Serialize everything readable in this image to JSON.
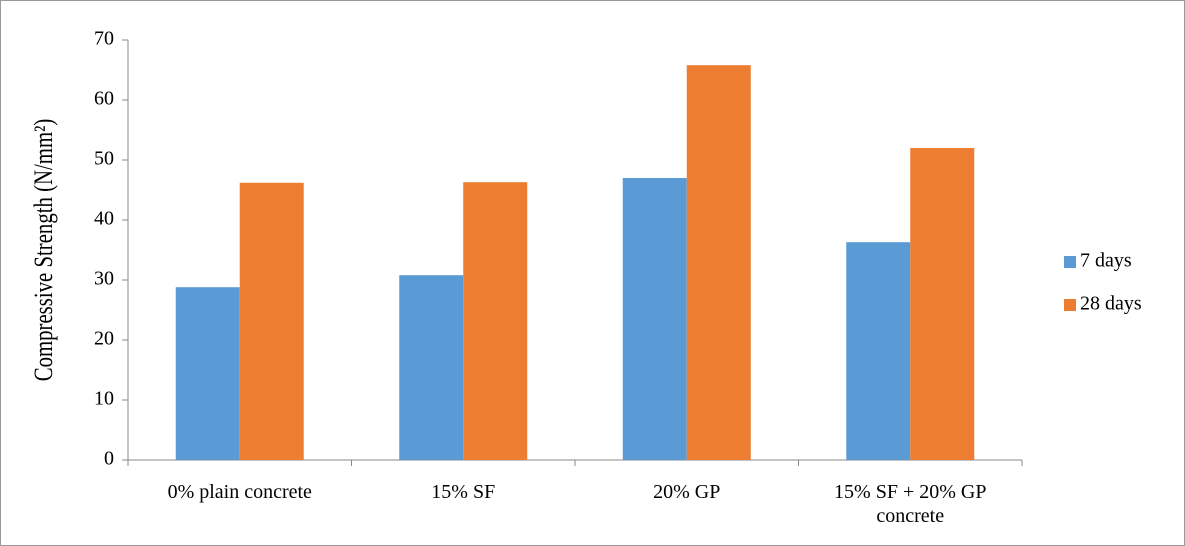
{
  "chart_data": {
    "type": "bar",
    "y_axis_label": "Compressive Strength (N/mm²)",
    "categories": [
      "0% plain concrete",
      "15% SF",
      "20% GP",
      "15% SF + 20% GP concrete"
    ],
    "series": [
      {
        "name": "7 days",
        "color": "#5b9bd5",
        "values": [
          28.8,
          30.8,
          47,
          36.3
        ]
      },
      {
        "name": "28 days",
        "color": "#ed7d31",
        "values": [
          46.2,
          46.3,
          65.8,
          52
        ]
      }
    ],
    "ylim": [
      0,
      70
    ],
    "yticks": [
      0,
      10,
      20,
      30,
      40,
      50,
      60,
      70
    ],
    "legend": "right"
  }
}
